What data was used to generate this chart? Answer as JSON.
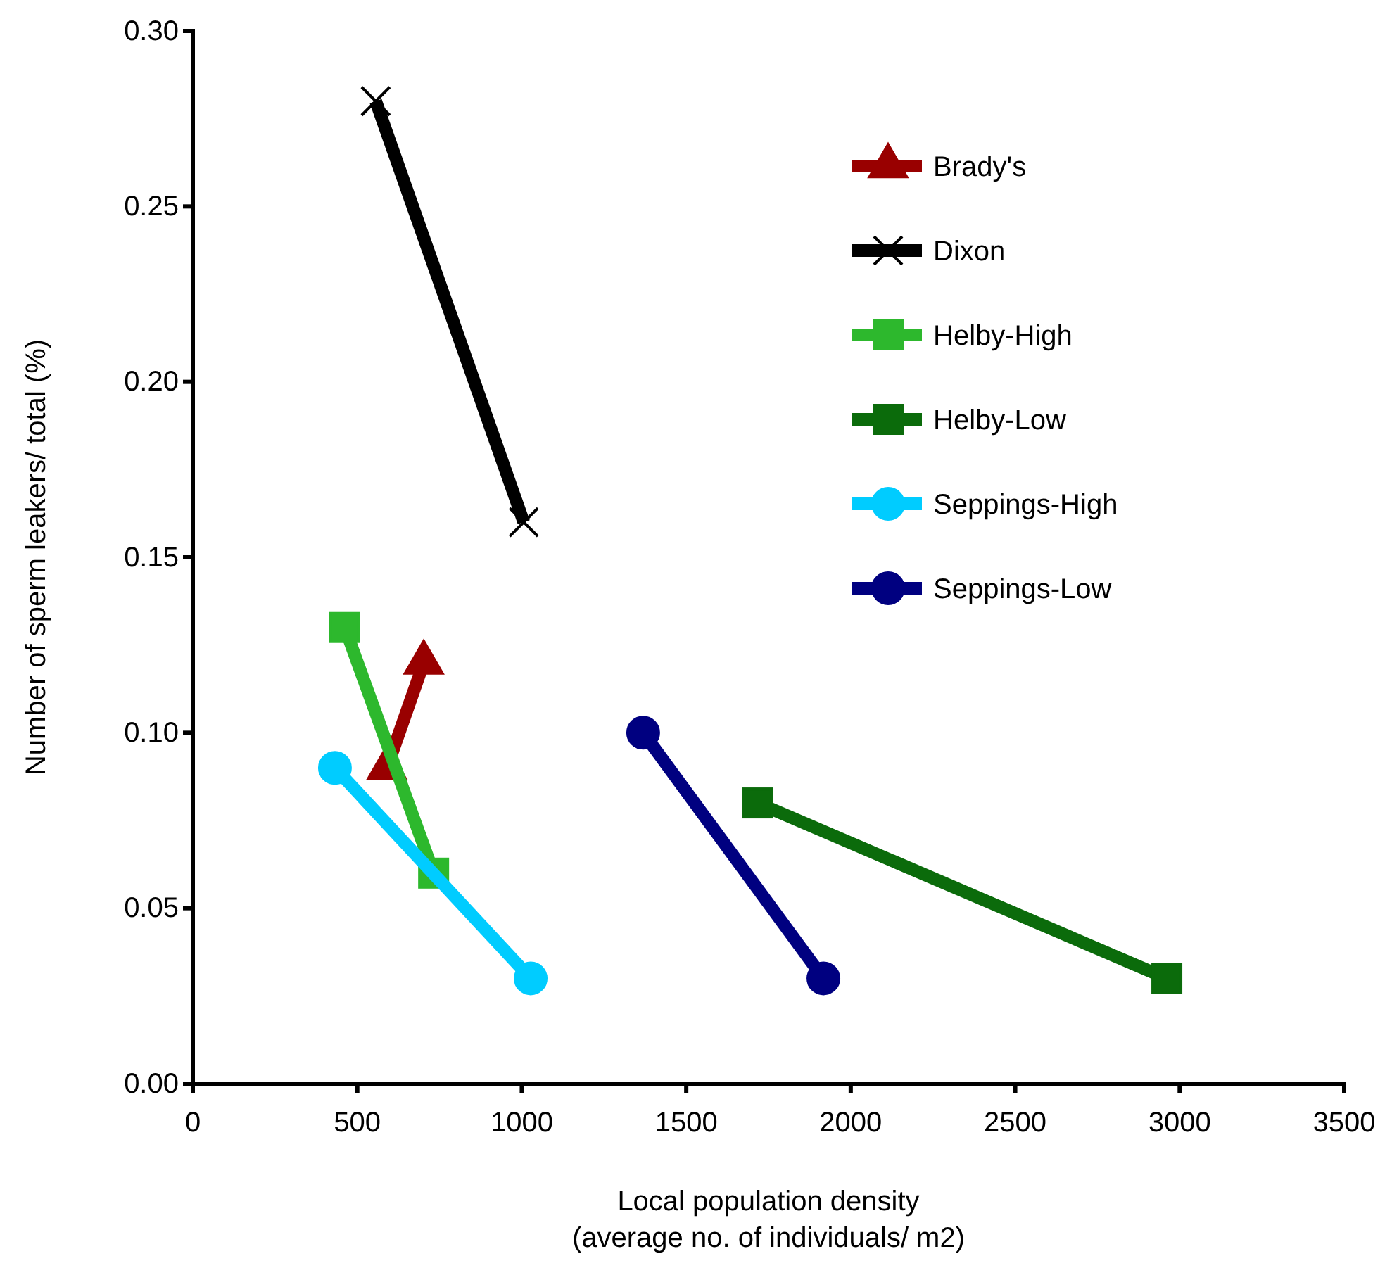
{
  "chart_data": {
    "type": "line",
    "xlabel": "Local population density\n(average no. of individuals/ m2)",
    "ylabel": "Number of sperm leakers/ total (%)",
    "xlim": [
      0,
      3500
    ],
    "xticks": [
      0,
      500,
      1000,
      1500,
      2000,
      2500,
      3000,
      3500
    ],
    "ylim": [
      0,
      0.3
    ],
    "yticks": [
      {
        "value": 0,
        "label": "0.00"
      },
      0.05,
      {
        "value": 0.1,
        "label": "0.10"
      },
      0.15,
      {
        "value": 0.2,
        "label": "0.20"
      },
      0.25,
      {
        "value": 0.3,
        "label": "0.30"
      }
    ],
    "grid": false,
    "legend": "top right",
    "line_style": "solid",
    "series": [
      {
        "name": "Brady's",
        "color": "#990000",
        "marker": "triangle",
        "x": [
          590,
          702
        ],
        "values": [
          0.09,
          0.12
        ]
      },
      {
        "name": "Dixon",
        "color": "#000000",
        "marker": "cross",
        "x": [
          556,
          1006
        ],
        "values": [
          0.28,
          0.16
        ]
      },
      {
        "name": "Helby-High",
        "color": "#2db82d",
        "marker": "square",
        "x": [
          462,
          732
        ],
        "values": [
          0.13,
          0.06
        ]
      },
      {
        "name": "Helby-Low",
        "color": "#0b6b0b",
        "marker": "square",
        "x": [
          1716,
          2961
        ],
        "values": [
          0.08,
          0.03
        ]
      },
      {
        "name": "Seppings-High",
        "color": "#00ccff",
        "marker": "circle",
        "x": [
          432,
          1027
        ],
        "values": [
          0.09,
          0.03
        ]
      },
      {
        "name": "Seppings-Low",
        "color": "#000080",
        "marker": "circle",
        "x": [
          1369,
          1917
        ],
        "values": [
          0.1,
          0.03
        ]
      }
    ]
  }
}
